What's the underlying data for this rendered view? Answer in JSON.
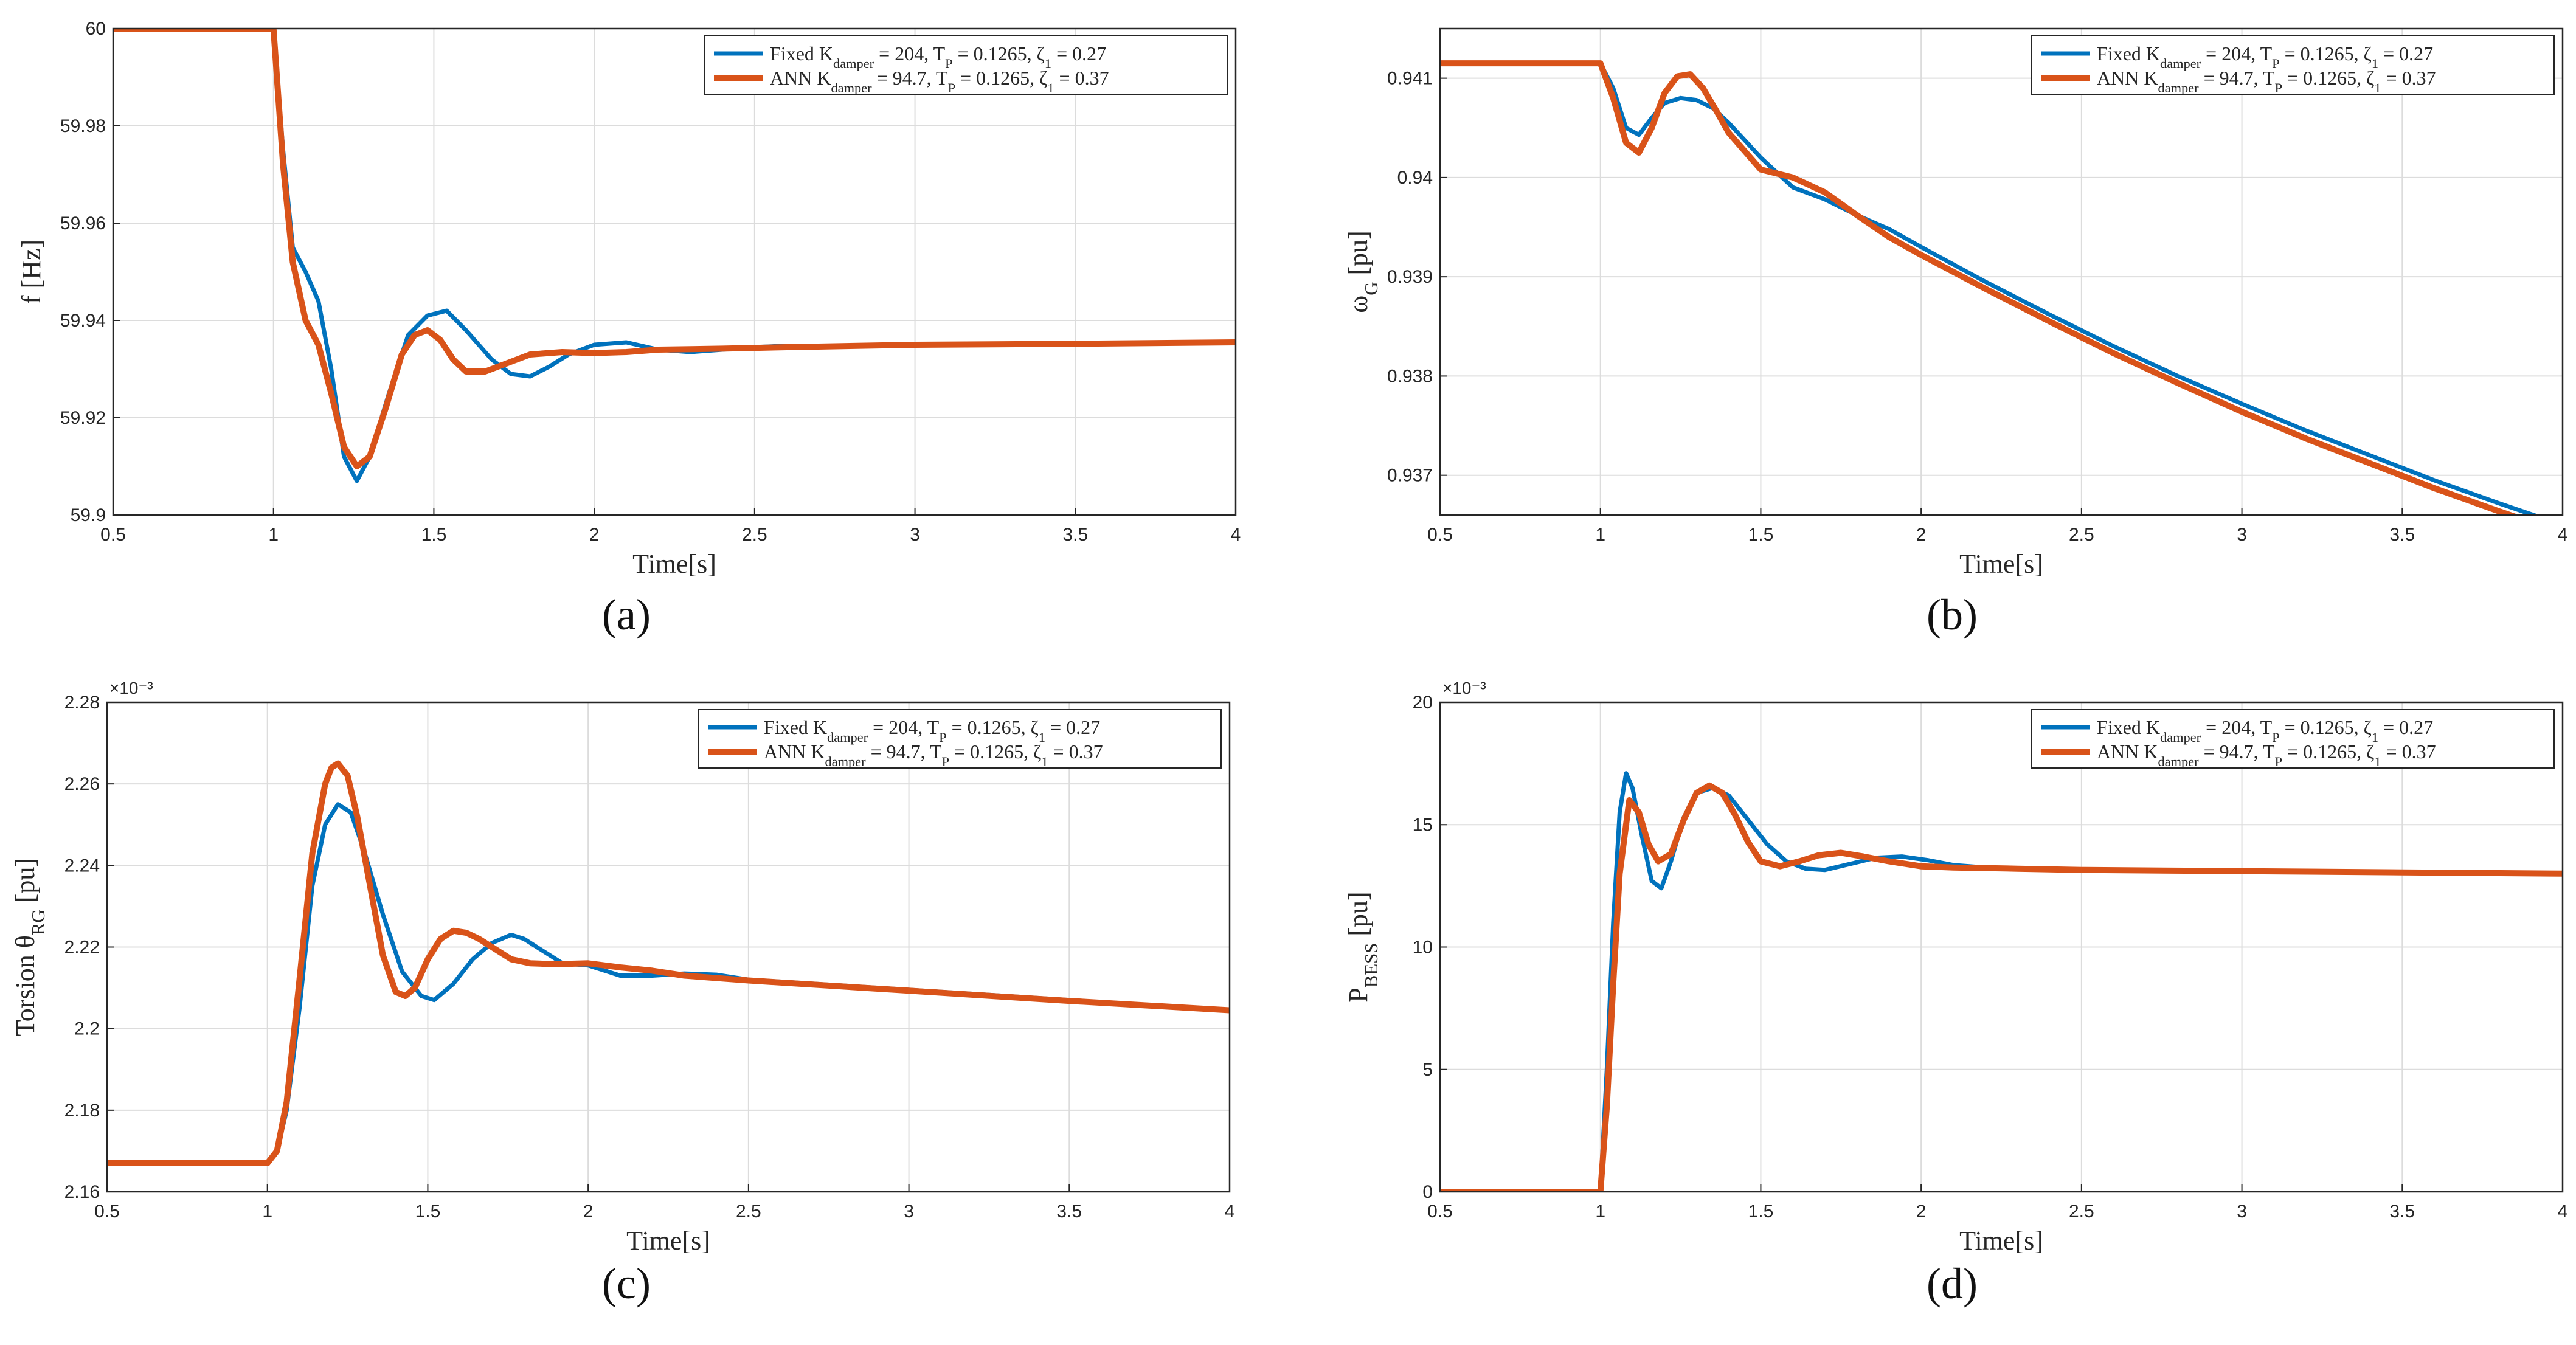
{
  "colors": {
    "series1": "#0072BD",
    "series2": "#D95319",
    "grid": "#dcdcdc",
    "axis": "#262626"
  },
  "legend": {
    "series1": "Fixed K_damper = 204, T_P = 0.1265, ζ_1 = 0.27",
    "series2": "ANN K_damper = 94.7, T_P = 0.1265, ζ_1 = 0.37"
  },
  "chart_data": [
    {
      "id": "a",
      "panel_label": "(a)",
      "type": "line",
      "xlabel": "Time[s]",
      "ylabel": "f [Hz]",
      "xlim": [
        0.5,
        4
      ],
      "ylim": [
        59.9,
        60
      ],
      "xticks": [
        "0.5",
        "1",
        "1.5",
        "2",
        "2.5",
        "3",
        "3.5",
        "4"
      ],
      "yticks": [
        "59.9",
        "59.92",
        "59.94",
        "59.96",
        "59.98",
        "60"
      ],
      "exponent": "",
      "series": [
        {
          "name": "Fixed K_damper = 204, T_P = 0.1265, ζ_1 = 0.27",
          "x": [
            0.5,
            1.0,
            1.03,
            1.06,
            1.1,
            1.14,
            1.18,
            1.22,
            1.26,
            1.3,
            1.36,
            1.42,
            1.48,
            1.54,
            1.6,
            1.68,
            1.74,
            1.8,
            1.86,
            1.92,
            2.0,
            2.1,
            2.2,
            2.3,
            2.4,
            2.5,
            2.6,
            2.8,
            3.0,
            3.5,
            4.0
          ],
          "y": [
            60.0,
            60.0,
            59.975,
            59.955,
            59.95,
            59.944,
            59.93,
            59.912,
            59.907,
            59.912,
            59.925,
            59.937,
            59.941,
            59.942,
            59.938,
            59.932,
            59.929,
            59.9285,
            59.9305,
            59.933,
            59.935,
            59.9355,
            59.934,
            59.9335,
            59.934,
            59.9345,
            59.9348,
            59.9348,
            59.935,
            59.9352,
            59.9355
          ]
        },
        {
          "name": "ANN K_damper = 94.7, T_P = 0.1265, ζ_1 = 0.37",
          "x": [
            0.5,
            1.0,
            1.03,
            1.06,
            1.1,
            1.14,
            1.18,
            1.22,
            1.26,
            1.3,
            1.35,
            1.4,
            1.44,
            1.48,
            1.52,
            1.56,
            1.6,
            1.66,
            1.72,
            1.8,
            1.9,
            2.0,
            2.1,
            2.2,
            2.4,
            2.6,
            3.0,
            3.5,
            4.0
          ],
          "y": [
            60.0,
            60.0,
            59.972,
            59.952,
            59.94,
            59.935,
            59.925,
            59.914,
            59.91,
            59.912,
            59.922,
            59.933,
            59.937,
            59.938,
            59.936,
            59.932,
            59.9295,
            59.9295,
            59.931,
            59.933,
            59.9335,
            59.9333,
            59.9335,
            59.934,
            59.9342,
            59.9345,
            59.935,
            59.9352,
            59.9355
          ]
        }
      ]
    },
    {
      "id": "b",
      "panel_label": "(b)",
      "type": "line",
      "xlabel": "Time[s]",
      "ylabel": "ω_G [pu]",
      "xlim": [
        0.5,
        4
      ],
      "ylim": [
        0.9366,
        0.9415
      ],
      "xticks": [
        "0.5",
        "1",
        "1.5",
        "2",
        "2.5",
        "3",
        "3.5",
        "4"
      ],
      "yticks": [
        "0.937",
        "0.938",
        "0.939",
        "0.94",
        "0.941"
      ],
      "exponent": "",
      "series": [
        {
          "name": "Fixed K_damper = 204, T_P = 0.1265, ζ_1 = 0.27",
          "x": [
            0.5,
            1.0,
            1.04,
            1.08,
            1.12,
            1.16,
            1.2,
            1.25,
            1.3,
            1.35,
            1.4,
            1.5,
            1.6,
            1.7,
            1.8,
            1.9,
            2.0,
            2.2,
            2.4,
            2.6,
            2.8,
            3.0,
            3.2,
            3.4,
            3.6,
            3.8,
            4.0
          ],
          "y": [
            0.94115,
            0.94115,
            0.9409,
            0.9405,
            0.94043,
            0.9406,
            0.94075,
            0.9408,
            0.94078,
            0.9407,
            0.94055,
            0.9402,
            0.9399,
            0.93978,
            0.93962,
            0.93948,
            0.9393,
            0.93895,
            0.93862,
            0.9383,
            0.938,
            0.93772,
            0.93745,
            0.9372,
            0.93695,
            0.93672,
            0.9365
          ]
        },
        {
          "name": "ANN K_damper = 94.7, T_P = 0.1265, ζ_1 = 0.37",
          "x": [
            0.5,
            1.0,
            1.04,
            1.08,
            1.12,
            1.16,
            1.2,
            1.24,
            1.28,
            1.32,
            1.36,
            1.4,
            1.5,
            1.6,
            1.7,
            1.8,
            1.9,
            2.0,
            2.2,
            2.4,
            2.6,
            2.8,
            3.0,
            3.2,
            3.4,
            3.6,
            3.8,
            4.0
          ],
          "y": [
            0.94115,
            0.94115,
            0.9408,
            0.94035,
            0.94025,
            0.9405,
            0.94085,
            0.94102,
            0.94104,
            0.9409,
            0.94068,
            0.94045,
            0.94008,
            0.94,
            0.93985,
            0.93962,
            0.9394,
            0.93922,
            0.93888,
            0.93855,
            0.93823,
            0.93793,
            0.93764,
            0.93737,
            0.93712,
            0.93687,
            0.93664,
            0.93642
          ]
        }
      ]
    },
    {
      "id": "c",
      "panel_label": "(c)",
      "type": "line",
      "xlabel": "Time[s]",
      "ylabel": "Torsion θ_RG [pu]",
      "xlim": [
        0.5,
        4
      ],
      "ylim": [
        2.16,
        2.28
      ],
      "xticks": [
        "0.5",
        "1",
        "1.5",
        "2",
        "2.5",
        "3",
        "3.5",
        "4"
      ],
      "yticks": [
        "2.16",
        "2.18",
        "2.2",
        "2.22",
        "2.24",
        "2.26",
        "2.28"
      ],
      "exponent": "×10⁻³",
      "series": [
        {
          "name": "Fixed K_damper = 204, T_P = 0.1265, ζ_1 = 0.27",
          "x": [
            0.5,
            1.0,
            1.03,
            1.06,
            1.1,
            1.14,
            1.18,
            1.22,
            1.26,
            1.3,
            1.36,
            1.42,
            1.48,
            1.52,
            1.58,
            1.64,
            1.7,
            1.76,
            1.8,
            1.86,
            1.92,
            2.0,
            2.1,
            2.2,
            2.3,
            2.4,
            2.5,
            3.0,
            3.5,
            4.0
          ],
          "y": [
            2.167,
            2.167,
            2.17,
            2.18,
            2.205,
            2.235,
            2.25,
            2.255,
            2.253,
            2.244,
            2.228,
            2.214,
            2.208,
            2.207,
            2.211,
            2.217,
            2.221,
            2.223,
            2.222,
            2.219,
            2.216,
            2.2155,
            2.213,
            2.213,
            2.2135,
            2.2132,
            2.212,
            2.2095,
            2.207,
            2.2045
          ]
        },
        {
          "name": "ANN K_damper = 94.7, T_P = 0.1265, ζ_1 = 0.37",
          "x": [
            0.5,
            1.0,
            1.03,
            1.06,
            1.1,
            1.14,
            1.18,
            1.2,
            1.22,
            1.25,
            1.28,
            1.32,
            1.36,
            1.4,
            1.43,
            1.46,
            1.5,
            1.54,
            1.58,
            1.62,
            1.66,
            1.7,
            1.76,
            1.82,
            1.9,
            2.0,
            2.1,
            2.2,
            2.3,
            2.5,
            3.0,
            3.5,
            4.0
          ],
          "y": [
            2.167,
            2.167,
            2.17,
            2.182,
            2.212,
            2.243,
            2.26,
            2.264,
            2.265,
            2.262,
            2.252,
            2.235,
            2.218,
            2.209,
            2.208,
            2.21,
            2.217,
            2.222,
            2.224,
            2.2235,
            2.222,
            2.22,
            2.217,
            2.216,
            2.2158,
            2.216,
            2.215,
            2.2142,
            2.213,
            2.2118,
            2.2093,
            2.2068,
            2.2045
          ]
        }
      ]
    },
    {
      "id": "d",
      "panel_label": "(d)",
      "type": "line",
      "xlabel": "Time[s]",
      "ylabel": "P_BESS [pu]",
      "xlim": [
        0.5,
        4
      ],
      "ylim": [
        0,
        20
      ],
      "xticks": [
        "0.5",
        "1",
        "1.5",
        "2",
        "2.5",
        "3",
        "3.5",
        "4"
      ],
      "yticks": [
        "0",
        "5",
        "10",
        "15",
        "20"
      ],
      "exponent": "×10⁻³",
      "series": [
        {
          "name": "Fixed K_damper = 204, T_P = 0.1265, ζ_1 = 0.27",
          "x": [
            0.5,
            1.0,
            1.02,
            1.04,
            1.06,
            1.08,
            1.1,
            1.13,
            1.16,
            1.19,
            1.22,
            1.26,
            1.3,
            1.35,
            1.4,
            1.46,
            1.52,
            1.58,
            1.64,
            1.7,
            1.78,
            1.86,
            1.94,
            2.02,
            2.1,
            2.2,
            2.3,
            2.5,
            3.0,
            3.5,
            4.0
          ],
          "y": [
            0,
            0,
            5,
            11,
            15.5,
            17.1,
            16.5,
            14.5,
            12.7,
            12.4,
            13.5,
            15.3,
            16.3,
            16.5,
            16.2,
            15.2,
            14.2,
            13.5,
            13.2,
            13.15,
            13.4,
            13.65,
            13.7,
            13.55,
            13.35,
            13.25,
            13.2,
            13.15,
            13.1,
            13.05,
            13.0
          ]
        },
        {
          "name": "ANN K_damper = 94.7, T_P = 0.1265, ζ_1 = 0.37",
          "x": [
            0.5,
            1.0,
            1.02,
            1.04,
            1.06,
            1.09,
            1.12,
            1.15,
            1.18,
            1.22,
            1.26,
            1.3,
            1.34,
            1.38,
            1.42,
            1.46,
            1.5,
            1.56,
            1.62,
            1.68,
            1.75,
            1.82,
            1.9,
            2.0,
            2.1,
            2.3,
            2.5,
            3.0,
            3.5,
            4.0
          ],
          "y": [
            0,
            0,
            3.5,
            8.5,
            13,
            16,
            15.5,
            14.2,
            13.5,
            13.8,
            15.2,
            16.3,
            16.6,
            16.3,
            15.4,
            14.3,
            13.5,
            13.3,
            13.5,
            13.75,
            13.85,
            13.7,
            13.5,
            13.3,
            13.25,
            13.2,
            13.15,
            13.1,
            13.05,
            13.0
          ]
        }
      ]
    }
  ]
}
